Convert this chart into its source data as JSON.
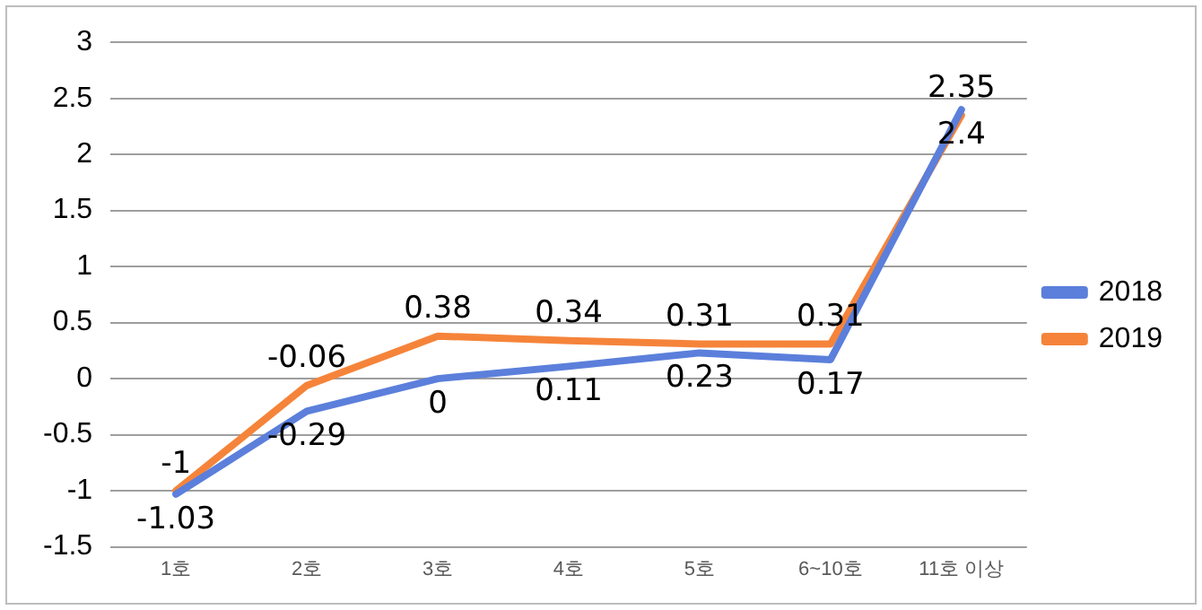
{
  "chart_data": {
    "type": "line",
    "categories": [
      "1호",
      "2호",
      "3호",
      "4호",
      "5호",
      "6~10호",
      "11호 이상"
    ],
    "series": [
      {
        "name": "2018",
        "color": "#5b7fdb",
        "values": [
          -1.03,
          -0.29,
          0,
          0.11,
          0.23,
          0.17,
          2.4
        ]
      },
      {
        "name": "2019",
        "color": "#f5843a",
        "values": [
          -1,
          -0.06,
          0.38,
          0.34,
          0.31,
          0.31,
          2.35
        ]
      }
    ],
    "ylim": [
      -1.5,
      3
    ],
    "yticks": [
      -1.5,
      -1,
      -0.5,
      0,
      0.5,
      1,
      1.5,
      2,
      2.5,
      3
    ],
    "grid": "y",
    "legend": "right",
    "data_labels": true,
    "marker": "none",
    "line_style": "solid"
  }
}
